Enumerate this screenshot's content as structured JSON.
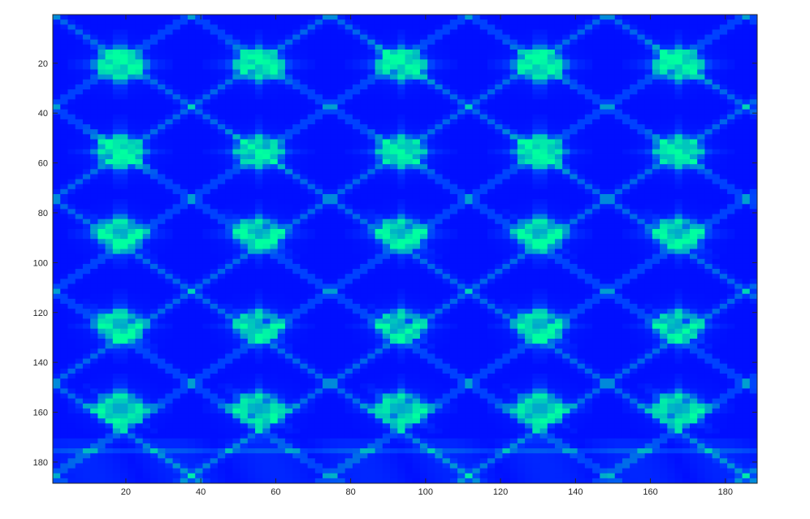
{
  "chart_data": {
    "type": "heatmap",
    "xlim": [
      0.5,
      188.5
    ],
    "ylim": [
      0.5,
      188.5
    ],
    "y_direction": "reversed",
    "x_ticks": [
      20,
      40,
      60,
      80,
      100,
      120,
      140,
      160,
      180
    ],
    "y_ticks": [
      20,
      40,
      60,
      80,
      100,
      120,
      140,
      160,
      180
    ],
    "x_tick_labels": [
      "20",
      "40",
      "60",
      "80",
      "100",
      "120",
      "140",
      "160",
      "180"
    ],
    "y_tick_labels": [
      "20",
      "40",
      "60",
      "80",
      "100",
      "120",
      "140",
      "160",
      "180"
    ],
    "colormap": [
      "#0000ff",
      "#0040ff",
      "#00c0c0",
      "#00ffa0"
    ],
    "background_color": "#0000e6",
    "pattern": {
      "cluster_columns_x": [
        18,
        55,
        93,
        130,
        167
      ],
      "cluster_rows_y": [
        20,
        55,
        88,
        125,
        158
      ],
      "cluster_intensity": 0.75,
      "lattice_period_x": 37,
      "lattice_period_y": 35,
      "lattice_intensity": 0.35,
      "noise_band_y": [
        170,
        188
      ]
    }
  }
}
